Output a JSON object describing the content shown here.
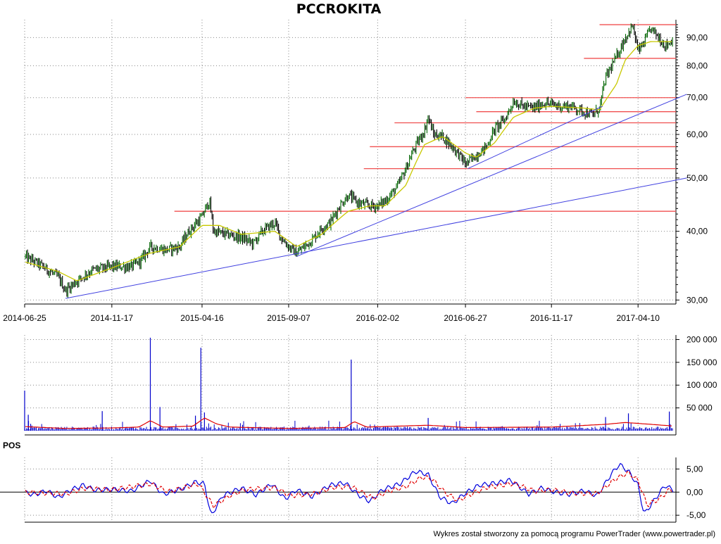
{
  "chart_data": [
    {
      "type": "candlestick",
      "title": "PCCROKITA",
      "scale": "log",
      "ylim": [
        29.5,
        97
      ],
      "y_ticks": [
        30,
        40,
        50,
        60,
        70,
        80,
        90
      ],
      "y_tick_labels": [
        "30,00",
        "40,00",
        "50,00",
        "60,00",
        "70,00",
        "80,00",
        "90,00"
      ],
      "x_tick_labels": [
        "2014-06-25",
        "2014-11-17",
        "2015-04-16",
        "2015-09-07",
        "2016-02-02",
        "2016-06-27",
        "2016-11-17",
        "2017-04-10"
      ],
      "grid": true,
      "close_path": [
        [
          "2014-06-25",
          36.0
        ],
        [
          "2014-07-20",
          34.8
        ],
        [
          "2014-08-20",
          33.0
        ],
        [
          "2014-09-01",
          31.2
        ],
        [
          "2014-09-20",
          32.5
        ],
        [
          "2014-10-15",
          34.0
        ],
        [
          "2014-11-17",
          34.5
        ],
        [
          "2014-12-20",
          34.5
        ],
        [
          "2015-01-05",
          35.5
        ],
        [
          "2015-01-20",
          37.5
        ],
        [
          "2015-02-15",
          37.0
        ],
        [
          "2015-03-10",
          37.5
        ],
        [
          "2015-03-25",
          40.0
        ],
        [
          "2015-04-16",
          42.5
        ],
        [
          "2015-04-28",
          45.5
        ],
        [
          "2015-05-05",
          40.0
        ],
        [
          "2015-05-25",
          39.5
        ],
        [
          "2015-06-20",
          39.0
        ],
        [
          "2015-07-10",
          38.0
        ],
        [
          "2015-07-25",
          40.0
        ],
        [
          "2015-08-15",
          41.5
        ],
        [
          "2015-08-25",
          39.0
        ],
        [
          "2015-09-07",
          37.5
        ],
        [
          "2015-09-20",
          36.5
        ],
        [
          "2015-10-15",
          38.5
        ],
        [
          "2015-11-01",
          40.5
        ],
        [
          "2015-11-15",
          41.5
        ],
        [
          "2015-12-01",
          44.5
        ],
        [
          "2015-12-15",
          46.5
        ],
        [
          "2016-01-01",
          45.0
        ],
        [
          "2016-01-20",
          44.5
        ],
        [
          "2016-02-02",
          44.5
        ],
        [
          "2016-02-15",
          45.5
        ],
        [
          "2016-03-05",
          48.0
        ],
        [
          "2016-03-20",
          52.0
        ],
        [
          "2016-04-01",
          56.0
        ],
        [
          "2016-04-20",
          61.0
        ],
        [
          "2016-04-26",
          64.5
        ],
        [
          "2016-05-05",
          60.0
        ],
        [
          "2016-05-20",
          59.5
        ],
        [
          "2016-06-05",
          57.0
        ],
        [
          "2016-06-20",
          54.5
        ],
        [
          "2016-06-27",
          53.0
        ],
        [
          "2016-07-15",
          55.0
        ],
        [
          "2016-08-01",
          57.0
        ],
        [
          "2016-08-15",
          61.5
        ],
        [
          "2016-09-01",
          64.0
        ],
        [
          "2016-09-15",
          69.0
        ],
        [
          "2016-10-01",
          67.5
        ],
        [
          "2016-10-20",
          67.0
        ],
        [
          "2016-11-05",
          68.5
        ],
        [
          "2016-11-17",
          68.0
        ],
        [
          "2016-12-05",
          67.5
        ],
        [
          "2016-12-20",
          67.5
        ],
        [
          "2017-01-10",
          66.0
        ],
        [
          "2017-01-25",
          65.0
        ],
        [
          "2017-02-05",
          67.0
        ],
        [
          "2017-02-15",
          76.0
        ],
        [
          "2017-03-05",
          83.0
        ],
        [
          "2017-03-20",
          90.0
        ],
        [
          "2017-04-01",
          94.5
        ],
        [
          "2017-04-10",
          85.0
        ],
        [
          "2017-04-20",
          88.0
        ],
        [
          "2017-05-01",
          93.5
        ],
        [
          "2017-05-15",
          90.0
        ],
        [
          "2017-05-25",
          87.0
        ],
        [
          "2017-06-10",
          89.5
        ]
      ],
      "moving_average_path": [
        [
          "2014-06-25",
          35.2
        ],
        [
          "2014-08-20",
          33.8
        ],
        [
          "2014-09-20",
          32.5
        ],
        [
          "2014-11-17",
          34.3
        ],
        [
          "2015-01-20",
          36.5
        ],
        [
          "2015-03-10",
          37.5
        ],
        [
          "2015-04-16",
          41.0
        ],
        [
          "2015-05-15",
          41.0
        ],
        [
          "2015-06-20",
          39.5
        ],
        [
          "2015-08-15",
          40.0
        ],
        [
          "2015-09-20",
          37.5
        ],
        [
          "2015-11-01",
          39.5
        ],
        [
          "2015-12-15",
          43.5
        ],
        [
          "2016-01-20",
          44.5
        ],
        [
          "2016-02-15",
          44.5
        ],
        [
          "2016-03-20",
          48.5
        ],
        [
          "2016-04-20",
          57.5
        ],
        [
          "2016-05-20",
          59.5
        ],
        [
          "2016-06-27",
          55.5
        ],
        [
          "2016-07-15",
          54.5
        ],
        [
          "2016-08-15",
          58.0
        ],
        [
          "2016-09-15",
          64.5
        ],
        [
          "2016-10-20",
          67.0
        ],
        [
          "2016-11-17",
          67.5
        ],
        [
          "2017-01-10",
          67.0
        ],
        [
          "2017-02-05",
          66.5
        ],
        [
          "2017-03-05",
          74.0
        ],
        [
          "2017-03-20",
          82.0
        ],
        [
          "2017-04-10",
          87.0
        ],
        [
          "2017-05-01",
          88.5
        ],
        [
          "2017-06-10",
          88.5
        ]
      ],
      "support_resistance_levels": [
        {
          "y": 43.5,
          "from": "2015-03-01"
        },
        {
          "y": 52.0,
          "from": "2016-01-10"
        },
        {
          "y": 57.0,
          "from": "2016-01-20"
        },
        {
          "y": 63.0,
          "from": "2016-03-01"
        },
        {
          "y": 66.0,
          "from": "2016-07-15"
        },
        {
          "y": 70.0,
          "from": "2016-06-27"
        },
        {
          "y": 82.5,
          "from": "2017-01-10"
        },
        {
          "y": 95.0,
          "from": "2017-02-05"
        }
      ],
      "trend_lines": [
        {
          "x1": "2014-09-01",
          "y1": 30.2,
          "x2": "2017-06-30",
          "y2": 50.0
        },
        {
          "x1": "2015-09-20",
          "y1": 36.0,
          "x2": "2017-06-30",
          "y2": 71.0
        },
        {
          "x1": "2016-07-01",
          "y1": 52.0,
          "x2": "2017-02-10",
          "y2": 67.5
        }
      ],
      "colors": {
        "candles": "#006400",
        "moving_average": "#c8c800",
        "levels": "#f05050",
        "trend_lines": "#4040e0"
      }
    },
    {
      "type": "bar",
      "name": "volume",
      "ylim": [
        0,
        210000
      ],
      "y_ticks": [
        50000,
        100000,
        150000,
        200000
      ],
      "y_tick_labels": [
        "50 000",
        "100 000",
        "150 000",
        "200 000"
      ],
      "spikes": [
        [
          "2014-06-25",
          88000
        ],
        [
          "2014-07-01",
          35000
        ],
        [
          "2014-07-05",
          15000
        ],
        [
          "2014-11-01",
          43000
        ],
        [
          "2015-01-20",
          204000
        ],
        [
          "2015-02-05",
          52000
        ],
        [
          "2015-04-05",
          33000
        ],
        [
          "2015-04-14",
          182000
        ],
        [
          "2015-04-20",
          40000
        ],
        [
          "2015-12-20",
          156000
        ],
        [
          "2016-04-26",
          28000
        ],
        [
          "2017-02-15",
          30000
        ],
        [
          "2017-03-25",
          38000
        ],
        [
          "2017-06-01",
          42000
        ]
      ],
      "baseline": 6000,
      "average_path": [
        [
          "2014-06-25",
          9000
        ],
        [
          "2014-09-01",
          5000
        ],
        [
          "2014-11-17",
          6000
        ],
        [
          "2015-01-01",
          8000
        ],
        [
          "2015-01-20",
          22000
        ],
        [
          "2015-02-10",
          8000
        ],
        [
          "2015-04-01",
          10000
        ],
        [
          "2015-04-20",
          28000
        ],
        [
          "2015-05-10",
          15000
        ],
        [
          "2015-06-01",
          8000
        ],
        [
          "2015-09-07",
          5000
        ],
        [
          "2015-12-10",
          7000
        ],
        [
          "2015-12-25",
          20000
        ],
        [
          "2016-01-15",
          8000
        ],
        [
          "2016-04-26",
          12000
        ],
        [
          "2016-06-27",
          7000
        ],
        [
          "2016-11-17",
          8000
        ],
        [
          "2017-02-15",
          14000
        ],
        [
          "2017-03-20",
          18000
        ],
        [
          "2017-05-01",
          14000
        ],
        [
          "2017-06-10",
          10000
        ]
      ],
      "colors": {
        "bars": "#0000cc",
        "average": "#e00000"
      }
    },
    {
      "type": "line",
      "title": "POS",
      "ylim": [
        -6.5,
        7.5
      ],
      "y_ticks": [
        -5,
        0,
        5
      ],
      "y_tick_labels": [
        "-5,00",
        "0,00",
        "5,00"
      ],
      "series": [
        {
          "values": [
            [
              "2014-06-25",
              0.0
            ],
            [
              "2014-07-10",
              -0.6
            ],
            [
              "2014-08-01",
              0.3
            ],
            [
              "2014-08-20",
              -1.2
            ],
            [
              "2014-09-10",
              0.5
            ],
            [
              "2014-10-01",
              1.5
            ],
            [
              "2014-10-20",
              0.4
            ],
            [
              "2014-11-17",
              0.6
            ],
            [
              "2014-12-20",
              0.2
            ],
            [
              "2015-01-20",
              2.5
            ],
            [
              "2015-02-10",
              -0.5
            ],
            [
              "2015-03-15",
              0.8
            ],
            [
              "2015-04-05",
              2.2
            ],
            [
              "2015-04-20",
              1.8
            ],
            [
              "2015-05-01",
              -5.2
            ],
            [
              "2015-05-20",
              -0.8
            ],
            [
              "2015-06-20",
              0.9
            ],
            [
              "2015-07-15",
              -0.6
            ],
            [
              "2015-08-10",
              1.8
            ],
            [
              "2015-09-01",
              -1.5
            ],
            [
              "2015-09-20",
              0.5
            ],
            [
              "2015-10-15",
              -1.0
            ],
            [
              "2015-11-15",
              1.5
            ],
            [
              "2015-12-10",
              2.0
            ],
            [
              "2016-01-01",
              -0.6
            ],
            [
              "2016-01-20",
              -2.0
            ],
            [
              "2016-02-10",
              0.5
            ],
            [
              "2016-03-10",
              1.8
            ],
            [
              "2016-04-05",
              4.5
            ],
            [
              "2016-04-26",
              3.8
            ],
            [
              "2016-05-15",
              -1.0
            ],
            [
              "2016-06-05",
              -2.5
            ],
            [
              "2016-06-27",
              -0.2
            ],
            [
              "2016-07-20",
              1.5
            ],
            [
              "2016-08-20",
              2.0
            ],
            [
              "2016-09-10",
              2.6
            ],
            [
              "2016-10-10",
              -0.4
            ],
            [
              "2016-11-01",
              0.9
            ],
            [
              "2016-11-17",
              0.2
            ],
            [
              "2016-12-15",
              -0.5
            ],
            [
              "2017-01-10",
              0.3
            ],
            [
              "2017-02-01",
              -0.8
            ],
            [
              "2017-02-25",
              4.0
            ],
            [
              "2017-03-10",
              6.0
            ],
            [
              "2017-03-25",
              4.5
            ],
            [
              "2017-04-10",
              1.5
            ],
            [
              "2017-04-20",
              -4.8
            ],
            [
              "2017-05-10",
              -1.2
            ],
            [
              "2017-05-25",
              1.5
            ],
            [
              "2017-06-10",
              0.2
            ]
          ],
          "color": "#0000dd"
        },
        {
          "values": [
            [
              "2014-06-25",
              0.0
            ],
            [
              "2014-08-01",
              -0.2
            ],
            [
              "2014-09-01",
              -0.4
            ],
            [
              "2014-10-05",
              0.9
            ],
            [
              "2014-11-17",
              0.5
            ],
            [
              "2015-01-20",
              1.8
            ],
            [
              "2015-02-20",
              0.1
            ],
            [
              "2015-04-10",
              1.8
            ],
            [
              "2015-05-05",
              -3.0
            ],
            [
              "2015-05-30",
              -0.9
            ],
            [
              "2015-06-25",
              0.5
            ],
            [
              "2015-08-15",
              1.0
            ],
            [
              "2015-09-10",
              -0.8
            ],
            [
              "2015-10-20",
              -0.3
            ],
            [
              "2015-11-20",
              1.0
            ],
            [
              "2015-12-20",
              1.2
            ],
            [
              "2016-01-25",
              -1.3
            ],
            [
              "2016-02-20",
              0.2
            ],
            [
              "2016-03-20",
              1.2
            ],
            [
              "2016-04-15",
              3.2
            ],
            [
              "2016-05-01",
              3.0
            ],
            [
              "2016-05-25",
              -0.2
            ],
            [
              "2016-06-15",
              -1.8
            ],
            [
              "2016-07-05",
              -0.5
            ],
            [
              "2016-08-01",
              1.0
            ],
            [
              "2016-09-15",
              1.9
            ],
            [
              "2016-10-20",
              0.2
            ],
            [
              "2016-11-17",
              0.5
            ],
            [
              "2016-12-20",
              -0.2
            ],
            [
              "2017-02-01",
              -0.3
            ],
            [
              "2017-03-05",
              3.0
            ],
            [
              "2017-03-25",
              4.2
            ],
            [
              "2017-04-10",
              2.5
            ],
            [
              "2017-04-25",
              -2.8
            ],
            [
              "2017-05-15",
              -1.5
            ],
            [
              "2017-06-01",
              0.5
            ],
            [
              "2017-06-10",
              0.6
            ]
          ],
          "color": "#e00000",
          "dashed": true
        }
      ]
    }
  ],
  "footer": {
    "credit": "Wykres został stworzony za pomocą programu PowerTrader (www.powertrader.pl)"
  }
}
